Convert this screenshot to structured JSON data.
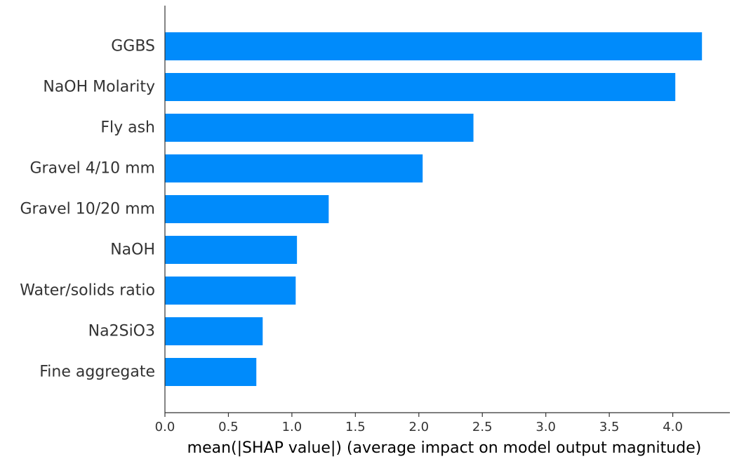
{
  "chart_data": {
    "type": "bar",
    "orientation": "horizontal",
    "categories": [
      "GGBS",
      "NaOH Molarity",
      "Fly ash",
      "Gravel 4/10 mm",
      "Gravel 10/20 mm",
      "NaOH",
      "Water/solids ratio",
      "Na2SiO3",
      "Fine aggregate"
    ],
    "values": [
      4.23,
      4.02,
      2.43,
      2.03,
      1.29,
      1.04,
      1.03,
      0.77,
      0.72
    ],
    "xlabel": "mean(|SHAP value|) (average impact on model output magnitude)",
    "ylabel": "",
    "xlim": [
      0,
      4.45
    ],
    "xticks": [
      "0.0",
      "0.5",
      "1.0",
      "1.5",
      "2.0",
      "2.5",
      "3.0",
      "3.5",
      "4.0"
    ],
    "grid": false,
    "bar_color": "#008bfb"
  }
}
